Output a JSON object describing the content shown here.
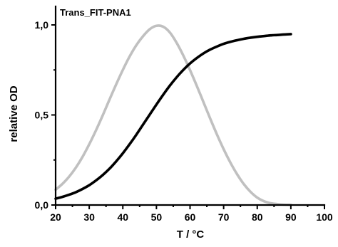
{
  "chart_data": {
    "type": "line",
    "title": "Trans_FIT-PNA1",
    "xlabel": "T / °C",
    "ylabel": "relative OD",
    "xlim": [
      20,
      100
    ],
    "ylim": [
      0,
      1.1
    ],
    "x_ticks": [
      20,
      30,
      40,
      50,
      60,
      70,
      80,
      90,
      100
    ],
    "x_tick_labels": [
      "20",
      "30",
      "40",
      "50",
      "60",
      "70",
      "80",
      "90",
      "100"
    ],
    "y_ticks": [
      0,
      0.5,
      1.0
    ],
    "y_tick_labels": [
      "0,0",
      "0,5",
      "1,0"
    ],
    "grid": false,
    "series": [
      {
        "color": "#000000",
        "x": [
          20,
          22,
          24,
          26,
          28,
          30,
          32,
          34,
          36,
          38,
          40,
          42,
          44,
          46,
          48,
          50,
          52,
          54,
          56,
          58,
          60,
          62,
          64,
          66,
          68,
          70,
          72,
          74,
          76,
          78,
          80,
          82,
          84,
          86,
          88,
          90
        ],
        "y": [
          0.035,
          0.045,
          0.057,
          0.071,
          0.089,
          0.11,
          0.136,
          0.166,
          0.201,
          0.242,
          0.287,
          0.337,
          0.39,
          0.446,
          0.502,
          0.558,
          0.612,
          0.663,
          0.709,
          0.75,
          0.786,
          0.816,
          0.842,
          0.863,
          0.88,
          0.895,
          0.906,
          0.915,
          0.923,
          0.929,
          0.934,
          0.938,
          0.942,
          0.944,
          0.947,
          0.949
        ]
      },
      {
        "color": "#c0c0c0",
        "x": [
          20,
          22,
          24,
          26,
          28,
          30,
          32,
          34,
          36,
          38,
          40,
          42,
          44,
          46,
          48,
          50,
          52,
          54,
          56,
          58,
          60,
          62,
          64,
          66,
          68,
          70,
          72,
          74,
          76,
          78,
          80,
          82,
          84,
          86,
          88,
          90
        ],
        "y": [
          0.085,
          0.117,
          0.157,
          0.207,
          0.267,
          0.337,
          0.414,
          0.497,
          0.584,
          0.669,
          0.75,
          0.824,
          0.887,
          0.937,
          0.976,
          0.995,
          0.99,
          0.958,
          0.901,
          0.83,
          0.749,
          0.662,
          0.571,
          0.48,
          0.392,
          0.31,
          0.236,
          0.171,
          0.116,
          0.073,
          0.041,
          0.021,
          0.01,
          0.005,
          0.002,
          0.001
        ]
      }
    ]
  }
}
